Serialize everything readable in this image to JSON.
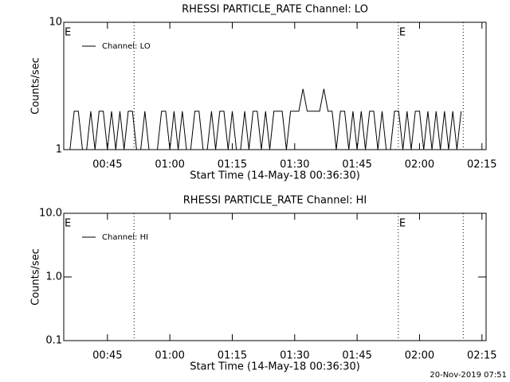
{
  "chart_data": [
    {
      "type": "line",
      "title": "RHESSI PARTICLE_RATE Channel: LO",
      "xlabel": "Start Time (14-May-18 00:36:30)",
      "ylabel": "Counts/sec",
      "log_y": true,
      "xlim": [
        34.5,
        136
      ],
      "ylim": [
        1,
        10
      ],
      "xticks": [
        {
          "value": 45,
          "label": "00:45"
        },
        {
          "value": 60,
          "label": "01:00"
        },
        {
          "value": 75,
          "label": "01:15"
        },
        {
          "value": 90,
          "label": "01:30"
        },
        {
          "value": 105,
          "label": "01:45"
        },
        {
          "value": 120,
          "label": "02:00"
        },
        {
          "value": 135,
          "label": "02:15"
        }
      ],
      "yticks": [
        1,
        10
      ],
      "vlines": [
        51.4,
        114.9,
        130.5
      ],
      "annotations": [
        {
          "text": "E",
          "x": 34.5
        },
        {
          "text": "E",
          "x": 114.9
        }
      ],
      "legend": "top-left",
      "series": [
        {
          "name": "Channel: LO",
          "color": "#000000",
          "x": [
            36,
            37,
            38,
            39,
            40,
            41,
            42,
            43,
            44,
            45,
            46,
            47,
            48,
            49,
            50,
            51,
            52,
            53,
            54,
            55,
            56,
            57,
            58,
            59,
            60,
            61,
            62,
            63,
            64,
            65,
            66,
            67,
            68,
            69,
            70,
            71,
            72,
            73,
            74,
            75,
            76,
            77,
            78,
            79,
            80,
            81,
            82,
            83,
            84,
            85,
            86,
            87,
            88,
            89,
            90,
            91,
            92,
            93,
            94,
            95,
            96,
            97,
            98,
            99,
            100,
            101,
            102,
            103,
            104,
            105,
            106,
            107,
            108,
            109,
            110,
            111,
            112,
            113,
            114,
            115,
            116,
            117,
            118,
            119,
            120,
            121,
            122,
            123,
            124,
            125,
            126,
            127,
            128,
            129,
            130
          ],
          "values": [
            1,
            2,
            2,
            1,
            1,
            2,
            1,
            2,
            2,
            1,
            2,
            1,
            2,
            1,
            2,
            2,
            1,
            1,
            2,
            1,
            1,
            1,
            2,
            2,
            1,
            2,
            1,
            2,
            1,
            1,
            2,
            2,
            1,
            1,
            2,
            1,
            2,
            2,
            1,
            2,
            1,
            1,
            2,
            1,
            2,
            2,
            1,
            2,
            1,
            2,
            2,
            2,
            1,
            2,
            2,
            2,
            3,
            2,
            2,
            2,
            2,
            3,
            2,
            2,
            1,
            2,
            2,
            1,
            2,
            1,
            2,
            1,
            2,
            2,
            1,
            2,
            1,
            1,
            2,
            2,
            1,
            2,
            1,
            2,
            2,
            1,
            2,
            1,
            2,
            1,
            2,
            1,
            2,
            1,
            2
          ]
        }
      ]
    },
    {
      "type": "line",
      "title": "RHESSI PARTICLE_RATE Channel: HI",
      "xlabel": "Start Time (14-May-18 00:36:30)",
      "ylabel": "Counts/sec",
      "log_y": true,
      "xlim": [
        34.5,
        136
      ],
      "ylim": [
        0.1,
        10
      ],
      "xticks": [
        {
          "value": 45,
          "label": "00:45"
        },
        {
          "value": 60,
          "label": "01:00"
        },
        {
          "value": 75,
          "label": "01:15"
        },
        {
          "value": 90,
          "label": "01:30"
        },
        {
          "value": 105,
          "label": "01:45"
        },
        {
          "value": 120,
          "label": "02:00"
        },
        {
          "value": 135,
          "label": "02:15"
        }
      ],
      "yticks": [
        {
          "value": 0.1,
          "label": "0.1"
        },
        {
          "value": 1,
          "label": "1.0"
        },
        {
          "value": 10,
          "label": "10.0"
        }
      ],
      "vlines": [
        51.4,
        114.9,
        130.5
      ],
      "annotations": [
        {
          "text": "E",
          "x": 34.5
        },
        {
          "text": "E",
          "x": 114.9
        }
      ],
      "legend": "top-left",
      "series": [
        {
          "name": "Channel: HI",
          "color": "#000000",
          "x": [],
          "values": []
        }
      ]
    }
  ],
  "footer": "20-Nov-2019 07:51"
}
